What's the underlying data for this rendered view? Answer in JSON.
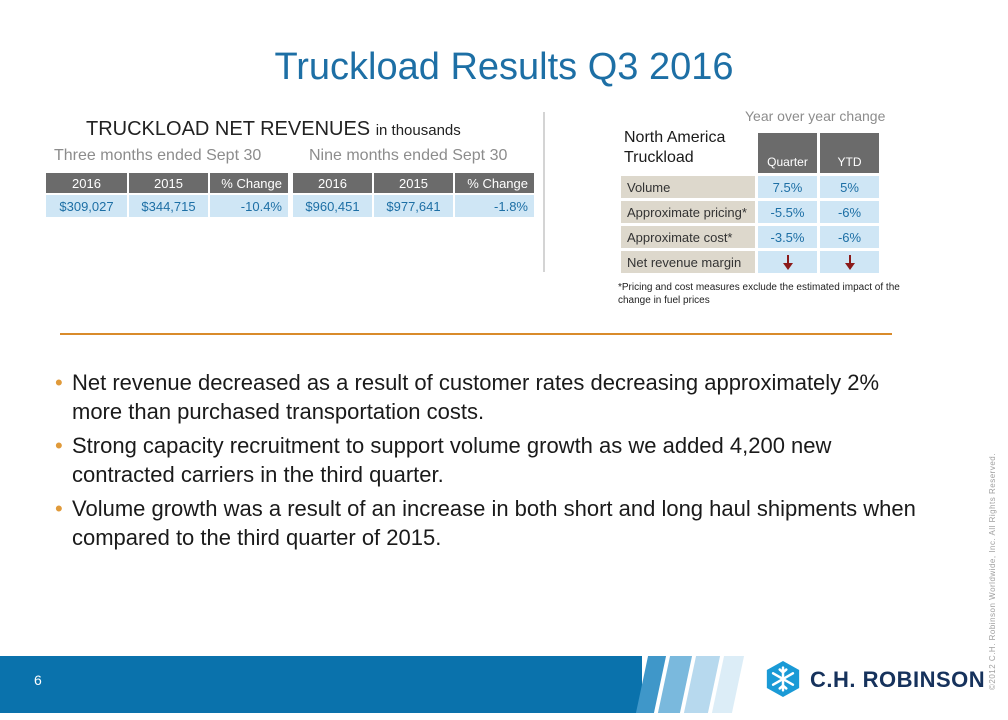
{
  "title": "Truckload Results Q3 2016",
  "net_revenues": {
    "heading": "TRUCKLOAD NET REVENUES",
    "unit": "in thousands",
    "three_months": {
      "label": "Three months ended Sept 30",
      "headers": [
        "2016",
        "2015",
        "% Change"
      ],
      "values": [
        "$309,027",
        "$344,715",
        "-10.4%"
      ]
    },
    "nine_months": {
      "label": "Nine months ended Sept 30",
      "headers": [
        "2016",
        "2015",
        "% Change"
      ],
      "values": [
        "$960,451",
        "$977,641",
        "-1.8%"
      ]
    }
  },
  "yoy": {
    "label": "Year over year change",
    "segment": [
      "North America",
      "Truckload"
    ],
    "headers": [
      "Quarter",
      "YTD"
    ],
    "rows": [
      {
        "label": "Volume",
        "quarter": "7.5%",
        "ytd": "5%"
      },
      {
        "label": "Approximate pricing*",
        "quarter": "-5.5%",
        "ytd": "-6%"
      },
      {
        "label": "Approximate cost*",
        "quarter": "-3.5%",
        "ytd": "-6%"
      },
      {
        "label": "Net revenue margin",
        "quarter_icon": "down-arrow-icon",
        "ytd_icon": "down-arrow-icon"
      }
    ],
    "footnote": "*Pricing and cost measures exclude the estimated impact of the change in fuel prices"
  },
  "bullets": [
    "Net revenue decreased as a result of customer rates decreasing approximately 2% more than purchased transportation costs.",
    "Strong capacity recruitment to support volume growth as we added 4,200 new contracted carriers in the third quarter.",
    "Volume growth was a result of an increase in both short and long haul shipments when compared to the third quarter of 2015."
  ],
  "footer": {
    "page_number": "6",
    "logo_text": "C.H. ROBINSON",
    "copyright": "©2012 C.H. Robinson Worldwide, Inc. All Rights Reserved."
  },
  "colors": {
    "title_blue": "#1d6fa5",
    "value_cell": "#cfe6f5",
    "header_gray": "#6b6b6b",
    "row_label_tan": "#ddd8cc",
    "accent_orange": "#d98b2b",
    "down_arrow": "#8b1a1a",
    "footer_blue": "#0a72ac",
    "logo_navy": "#16325c"
  }
}
